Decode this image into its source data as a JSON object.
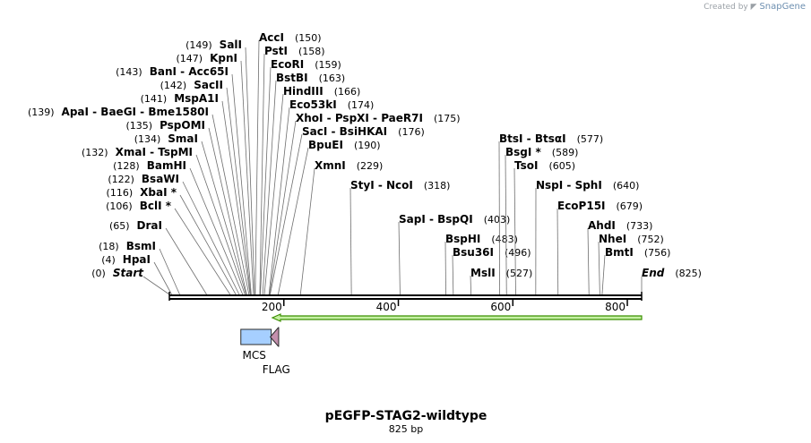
{
  "credit": {
    "prefix": "Created by",
    "brand": "SnapGene"
  },
  "map": {
    "title": "pEGFP-STAG2-wildtype",
    "length_label": "825 bp",
    "length": 825,
    "ticks": [
      200,
      400,
      600,
      800
    ]
  },
  "sites": [
    {
      "id": "start",
      "label": "Start",
      "pos": "(0)",
      "bp": 0,
      "italic": true
    },
    {
      "id": "hpai",
      "label": "HpaI",
      "pos": "(4)",
      "bp": 4
    },
    {
      "id": "bsmi",
      "label": "BsmI",
      "pos": "(18)",
      "bp": 18
    },
    {
      "id": "drai",
      "label": "DraI",
      "pos": "(65)",
      "bp": 65
    },
    {
      "id": "bcli",
      "label": "BclI *",
      "pos": "(106)",
      "bp": 106
    },
    {
      "id": "xbai",
      "label": "XbaI *",
      "pos": "(116)",
      "bp": 116
    },
    {
      "id": "bsawi",
      "label": "BsaWI",
      "pos": "(122)",
      "bp": 122
    },
    {
      "id": "bamhi",
      "label": "BamHI",
      "pos": "(128)",
      "bp": 128
    },
    {
      "id": "xmai",
      "label": "XmaI  -  TspMI",
      "pos": "(132)",
      "bp": 132
    },
    {
      "id": "smai",
      "label": "SmaI",
      "pos": "(134)",
      "bp": 134
    },
    {
      "id": "pspomi",
      "label": "PspOMI",
      "pos": "(135)",
      "bp": 135
    },
    {
      "id": "apai",
      "label": "ApaI  -  BaeGI  -  Bme1580I",
      "pos": "(139)",
      "bp": 139
    },
    {
      "id": "mspa1i",
      "label": "MspA1I",
      "pos": "(141)",
      "bp": 141
    },
    {
      "id": "sacii",
      "label": "SacII",
      "pos": "(142)",
      "bp": 142
    },
    {
      "id": "bani",
      "label": "BanI  -  Acc65I",
      "pos": "(143)",
      "bp": 143
    },
    {
      "id": "kpni",
      "label": "KpnI",
      "pos": "(147)",
      "bp": 147
    },
    {
      "id": "sali",
      "label": "SalI",
      "pos": "(149)",
      "bp": 149
    },
    {
      "id": "acci",
      "label": "AccI",
      "pos": "(150)",
      "bp": 150
    },
    {
      "id": "psti",
      "label": "PstI",
      "pos": "(158)",
      "bp": 158
    },
    {
      "id": "ecori",
      "label": "EcoRI",
      "pos": "(159)",
      "bp": 159
    },
    {
      "id": "bstbi",
      "label": "BstBI",
      "pos": "(163)",
      "bp": 163
    },
    {
      "id": "hindiii",
      "label": "HindIII",
      "pos": "(166)",
      "bp": 166
    },
    {
      "id": "eco53ki",
      "label": "Eco53kI",
      "pos": "(174)",
      "bp": 174
    },
    {
      "id": "xhoi",
      "label": "XhoI  -  PspXI  -  PaeR7I",
      "pos": "(175)",
      "bp": 175
    },
    {
      "id": "saci",
      "label": "SacI  -  BsiHKAI",
      "pos": "(176)",
      "bp": 176
    },
    {
      "id": "bpuei",
      "label": "BpuEI",
      "pos": "(190)",
      "bp": 190
    },
    {
      "id": "xmni",
      "label": "XmnI",
      "pos": "(229)",
      "bp": 229
    },
    {
      "id": "styi",
      "label": "StyI  -  NcoI",
      "pos": "(318)",
      "bp": 318
    },
    {
      "id": "sapi",
      "label": "SapI  -  BspQI",
      "pos": "(403)",
      "bp": 403
    },
    {
      "id": "bsphi",
      "label": "BspHI",
      "pos": "(483)",
      "bp": 483
    },
    {
      "id": "bsu36i",
      "label": "Bsu36I",
      "pos": "(496)",
      "bp": 496
    },
    {
      "id": "msli",
      "label": "MslI",
      "pos": "(527)",
      "bp": 527
    },
    {
      "id": "btsi",
      "label": "BtsI  -  BtsαI",
      "pos": "(577)",
      "bp": 577
    },
    {
      "id": "bsgi",
      "label": "BsgI *",
      "pos": "(589)",
      "bp": 589
    },
    {
      "id": "tsoi",
      "label": "TsoI",
      "pos": "(605)",
      "bp": 605
    },
    {
      "id": "nspi",
      "label": "NspI  -  SphI",
      "pos": "(640)",
      "bp": 640
    },
    {
      "id": "ecop15i",
      "label": "EcoP15I",
      "pos": "(679)",
      "bp": 679
    },
    {
      "id": "ahdi",
      "label": "AhdI",
      "pos": "(733)",
      "bp": 733
    },
    {
      "id": "nhei",
      "label": "NheI",
      "pos": "(752)",
      "bp": 752
    },
    {
      "id": "bmti",
      "label": "BmtI",
      "pos": "(756)",
      "bp": 756
    },
    {
      "id": "end",
      "label": "End",
      "pos": "(825)",
      "bp": 825,
      "italic": true
    }
  ],
  "features": [
    {
      "id": "mcs",
      "label": "MCS",
      "start": 128,
      "end": 181,
      "color": "#a6cfff"
    },
    {
      "id": "flag",
      "label": "FLAG",
      "start": 181,
      "end": 205,
      "color": "#c490ad"
    },
    {
      "id": "orf",
      "label": "",
      "start": 180,
      "end": 825,
      "color": "#c6f0a4"
    }
  ],
  "colors": {
    "axis": "#000000",
    "orf": "#c6f0a4",
    "orf_border": "#3b8f00",
    "mcs": "#a6cfff",
    "flag": "#c490ad"
  }
}
